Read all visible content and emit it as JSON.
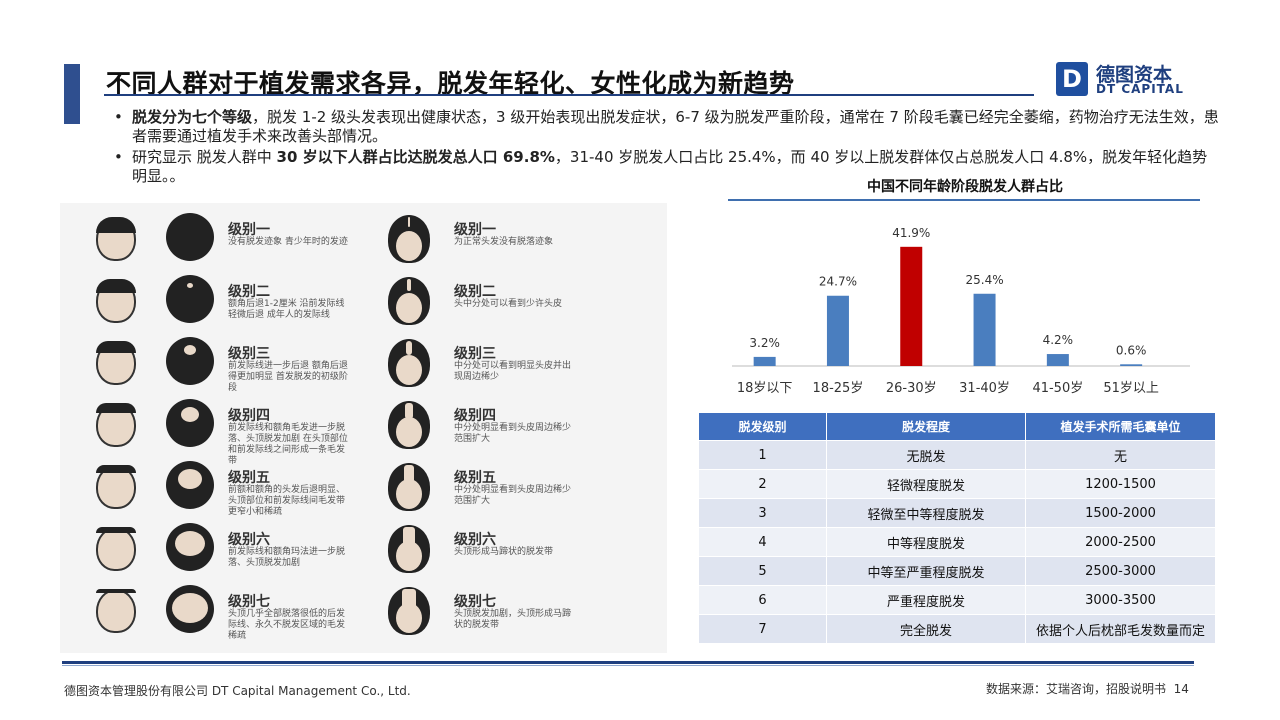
{
  "header": {
    "title": "不同人群对于植发需求各异，脱发年轻化、女性化成为新趋势",
    "logo_cn": "德图资本",
    "logo_en": "DT CAPITAL",
    "logo_mark": "D"
  },
  "bullets": [
    {
      "bold_prefix": "脱发分为七个等级",
      "text": "，脱发 1-2 级头发表现出健康状态，3 级开始表现出脱发症状，6-7 级为脱发严重阶段，通常在 7 阶段毛囊已经完全萎缩，药物治疗无法生效，患者需要通过植发手术来改善头部情况。"
    },
    {
      "pre": "研究显示 脱发人群中 ",
      "bold": "30 岁以下人群占比达脱发总人口 69.8%",
      "post": "，31-40 岁脱发人口占比 25.4%，而 40 岁以上脱发群体仅占总脱发人口 4.8%，脱发年轻化趋势明显。。"
    }
  ],
  "grades": {
    "male": [
      {
        "title": "级别一",
        "desc": "没有脱发迹象 青少年时的发迹"
      },
      {
        "title": "级别二",
        "desc": "额角后退1-2厘米 沿前发际线轻微后退 成年人的发际线"
      },
      {
        "title": "级别三",
        "desc": "前发际线进一步后退 额角后退得更加明显 首发脱发的初级阶段"
      },
      {
        "title": "级别四",
        "desc": "前发际线和额角毛发进一步脱落、头顶脱发加剧 在头顶部位和前发际线之间形成一条毛发带"
      },
      {
        "title": "级别五",
        "desc": "前额和额角的头发后退明显、头顶部位和前发际线间毛发带更窄小和稀疏"
      },
      {
        "title": "级别六",
        "desc": "前发际线和额角玛法进一步脱落、头顶脱发加剧"
      },
      {
        "title": "级别七",
        "desc": "头顶几乎全部脱落很低的后发际线、永久不脱发区域的毛发稀疏"
      }
    ],
    "female": [
      {
        "title": "级别一",
        "desc": "为正常头发没有脱落迹象"
      },
      {
        "title": "级别二",
        "desc": "头中分处可以看到少许头皮"
      },
      {
        "title": "级别三",
        "desc": "中分处可以看到明显头皮并出现周边稀少"
      },
      {
        "title": "级别四",
        "desc": "中分处明显看到头皮周边稀少范围扩大"
      },
      {
        "title": "级别五",
        "desc": "中分处明显看到头皮周边稀少范围扩大"
      },
      {
        "title": "级别六",
        "desc": "头顶形成马蹄状的脱发带"
      },
      {
        "title": "级别七",
        "desc": "头顶脱发加剧，头顶形成马蹄状的脱发带"
      }
    ]
  },
  "chart_data": {
    "type": "bar",
    "title": "中国不同年龄阶段脱发人群占比",
    "categories": [
      "18岁以下",
      "18-25岁",
      "26-30岁",
      "31-40岁",
      "41-50岁",
      "51岁以上"
    ],
    "values": [
      3.2,
      24.7,
      41.9,
      25.4,
      4.2,
      0.6
    ],
    "value_labels": [
      "3.2%",
      "24.7%",
      "41.9%",
      "25.4%",
      "4.2%",
      "0.6%"
    ],
    "highlight_index": 2,
    "colors": {
      "default": "#4a7ebf",
      "highlight": "#c00000"
    },
    "ylim": [
      0,
      45
    ],
    "grid": false
  },
  "table": {
    "headers": [
      "脱发级别",
      "脱发程度",
      "植发手术所需毛囊单位"
    ],
    "rows": [
      [
        "1",
        "无脱发",
        "无"
      ],
      [
        "2",
        "轻微程度脱发",
        "1200-1500"
      ],
      [
        "3",
        "轻微至中等程度脱发",
        "1500-2000"
      ],
      [
        "4",
        "中等程度脱发",
        "2000-2500"
      ],
      [
        "5",
        "中等至严重程度脱发",
        "2500-3000"
      ],
      [
        "6",
        "严重程度脱发",
        "3000-3500"
      ],
      [
        "7",
        "完全脱发",
        "依据个人后枕部毛发数量而定"
      ]
    ]
  },
  "footer": {
    "company": "德图资本管理股份有限公司 DT Capital Management Co., Ltd.",
    "source": "数据来源：艾瑞咨询，招股说明书",
    "page": "14"
  }
}
